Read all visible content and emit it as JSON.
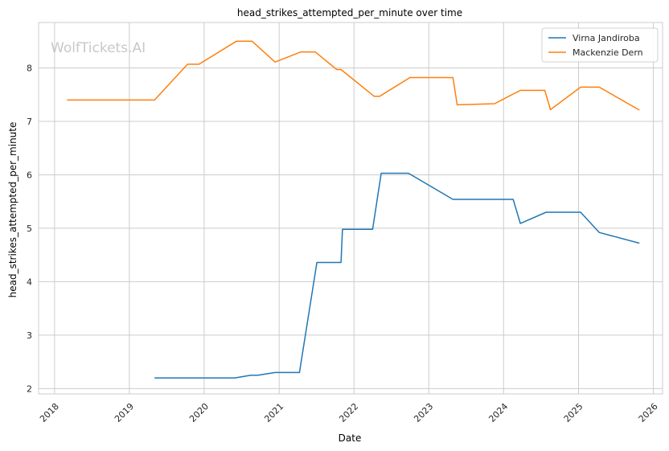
{
  "chart_data": {
    "type": "line",
    "title": "head_strikes_attempted_per_minute over time",
    "xlabel": "Date",
    "ylabel": "head_strikes_attempted_per_minute",
    "watermark": "WolfTickets.AI",
    "x_ticks": [
      "2018",
      "2019",
      "2020",
      "2021",
      "2022",
      "2023",
      "2024",
      "2025",
      "2026"
    ],
    "y_ticks": [
      "2",
      "3",
      "4",
      "5",
      "6",
      "7",
      "8"
    ],
    "xlim": [
      "2017-10-15",
      "2026-02-15"
    ],
    "ylim": [
      1.9,
      8.85
    ],
    "grid": true,
    "legend_position": "top-right",
    "series": [
      {
        "name": "Virna Jandiroba",
        "color": "#1f77b4",
        "points": [
          [
            "2019-05-04",
            2.2
          ],
          [
            "2020-05-30",
            2.2
          ],
          [
            "2020-08-15",
            2.25
          ],
          [
            "2020-09-19",
            2.25
          ],
          [
            "2020-12-12",
            2.3
          ],
          [
            "2021-04-10",
            2.3
          ],
          [
            "2021-07-04",
            4.36
          ],
          [
            "2021-10-30",
            4.36
          ],
          [
            "2021-11-06",
            4.98
          ],
          [
            "2022-04-02",
            4.98
          ],
          [
            "2022-05-14",
            6.03
          ],
          [
            "2022-09-24",
            6.03
          ],
          [
            "2023-04-29",
            5.54
          ],
          [
            "2024-02-17",
            5.54
          ],
          [
            "2024-03-23",
            5.09
          ],
          [
            "2024-07-27",
            5.3
          ],
          [
            "2025-01-11",
            5.3
          ],
          [
            "2025-04-12",
            4.92
          ],
          [
            "2025-10-25",
            4.72
          ]
        ]
      },
      {
        "name": "Mackenzie Dern",
        "color": "#ff7f0e",
        "points": [
          [
            "2018-03-03",
            7.4
          ],
          [
            "2019-05-04",
            7.4
          ],
          [
            "2019-10-12",
            8.07
          ],
          [
            "2019-12-07",
            8.07
          ],
          [
            "2020-06-06",
            8.5
          ],
          [
            "2020-08-22",
            8.5
          ],
          [
            "2020-12-12",
            8.11
          ],
          [
            "2021-04-17",
            8.3
          ],
          [
            "2021-06-26",
            8.3
          ],
          [
            "2021-10-09",
            7.97
          ],
          [
            "2021-10-30",
            7.97
          ],
          [
            "2022-04-09",
            7.47
          ],
          [
            "2022-05-07",
            7.47
          ],
          [
            "2022-10-01",
            7.82
          ],
          [
            "2023-04-29",
            7.82
          ],
          [
            "2023-05-20",
            7.31
          ],
          [
            "2023-11-18",
            7.33
          ],
          [
            "2024-03-23",
            7.58
          ],
          [
            "2024-07-20",
            7.58
          ],
          [
            "2024-08-17",
            7.22
          ],
          [
            "2025-01-11",
            7.64
          ],
          [
            "2025-04-12",
            7.64
          ],
          [
            "2025-10-25",
            7.21
          ]
        ]
      }
    ]
  }
}
